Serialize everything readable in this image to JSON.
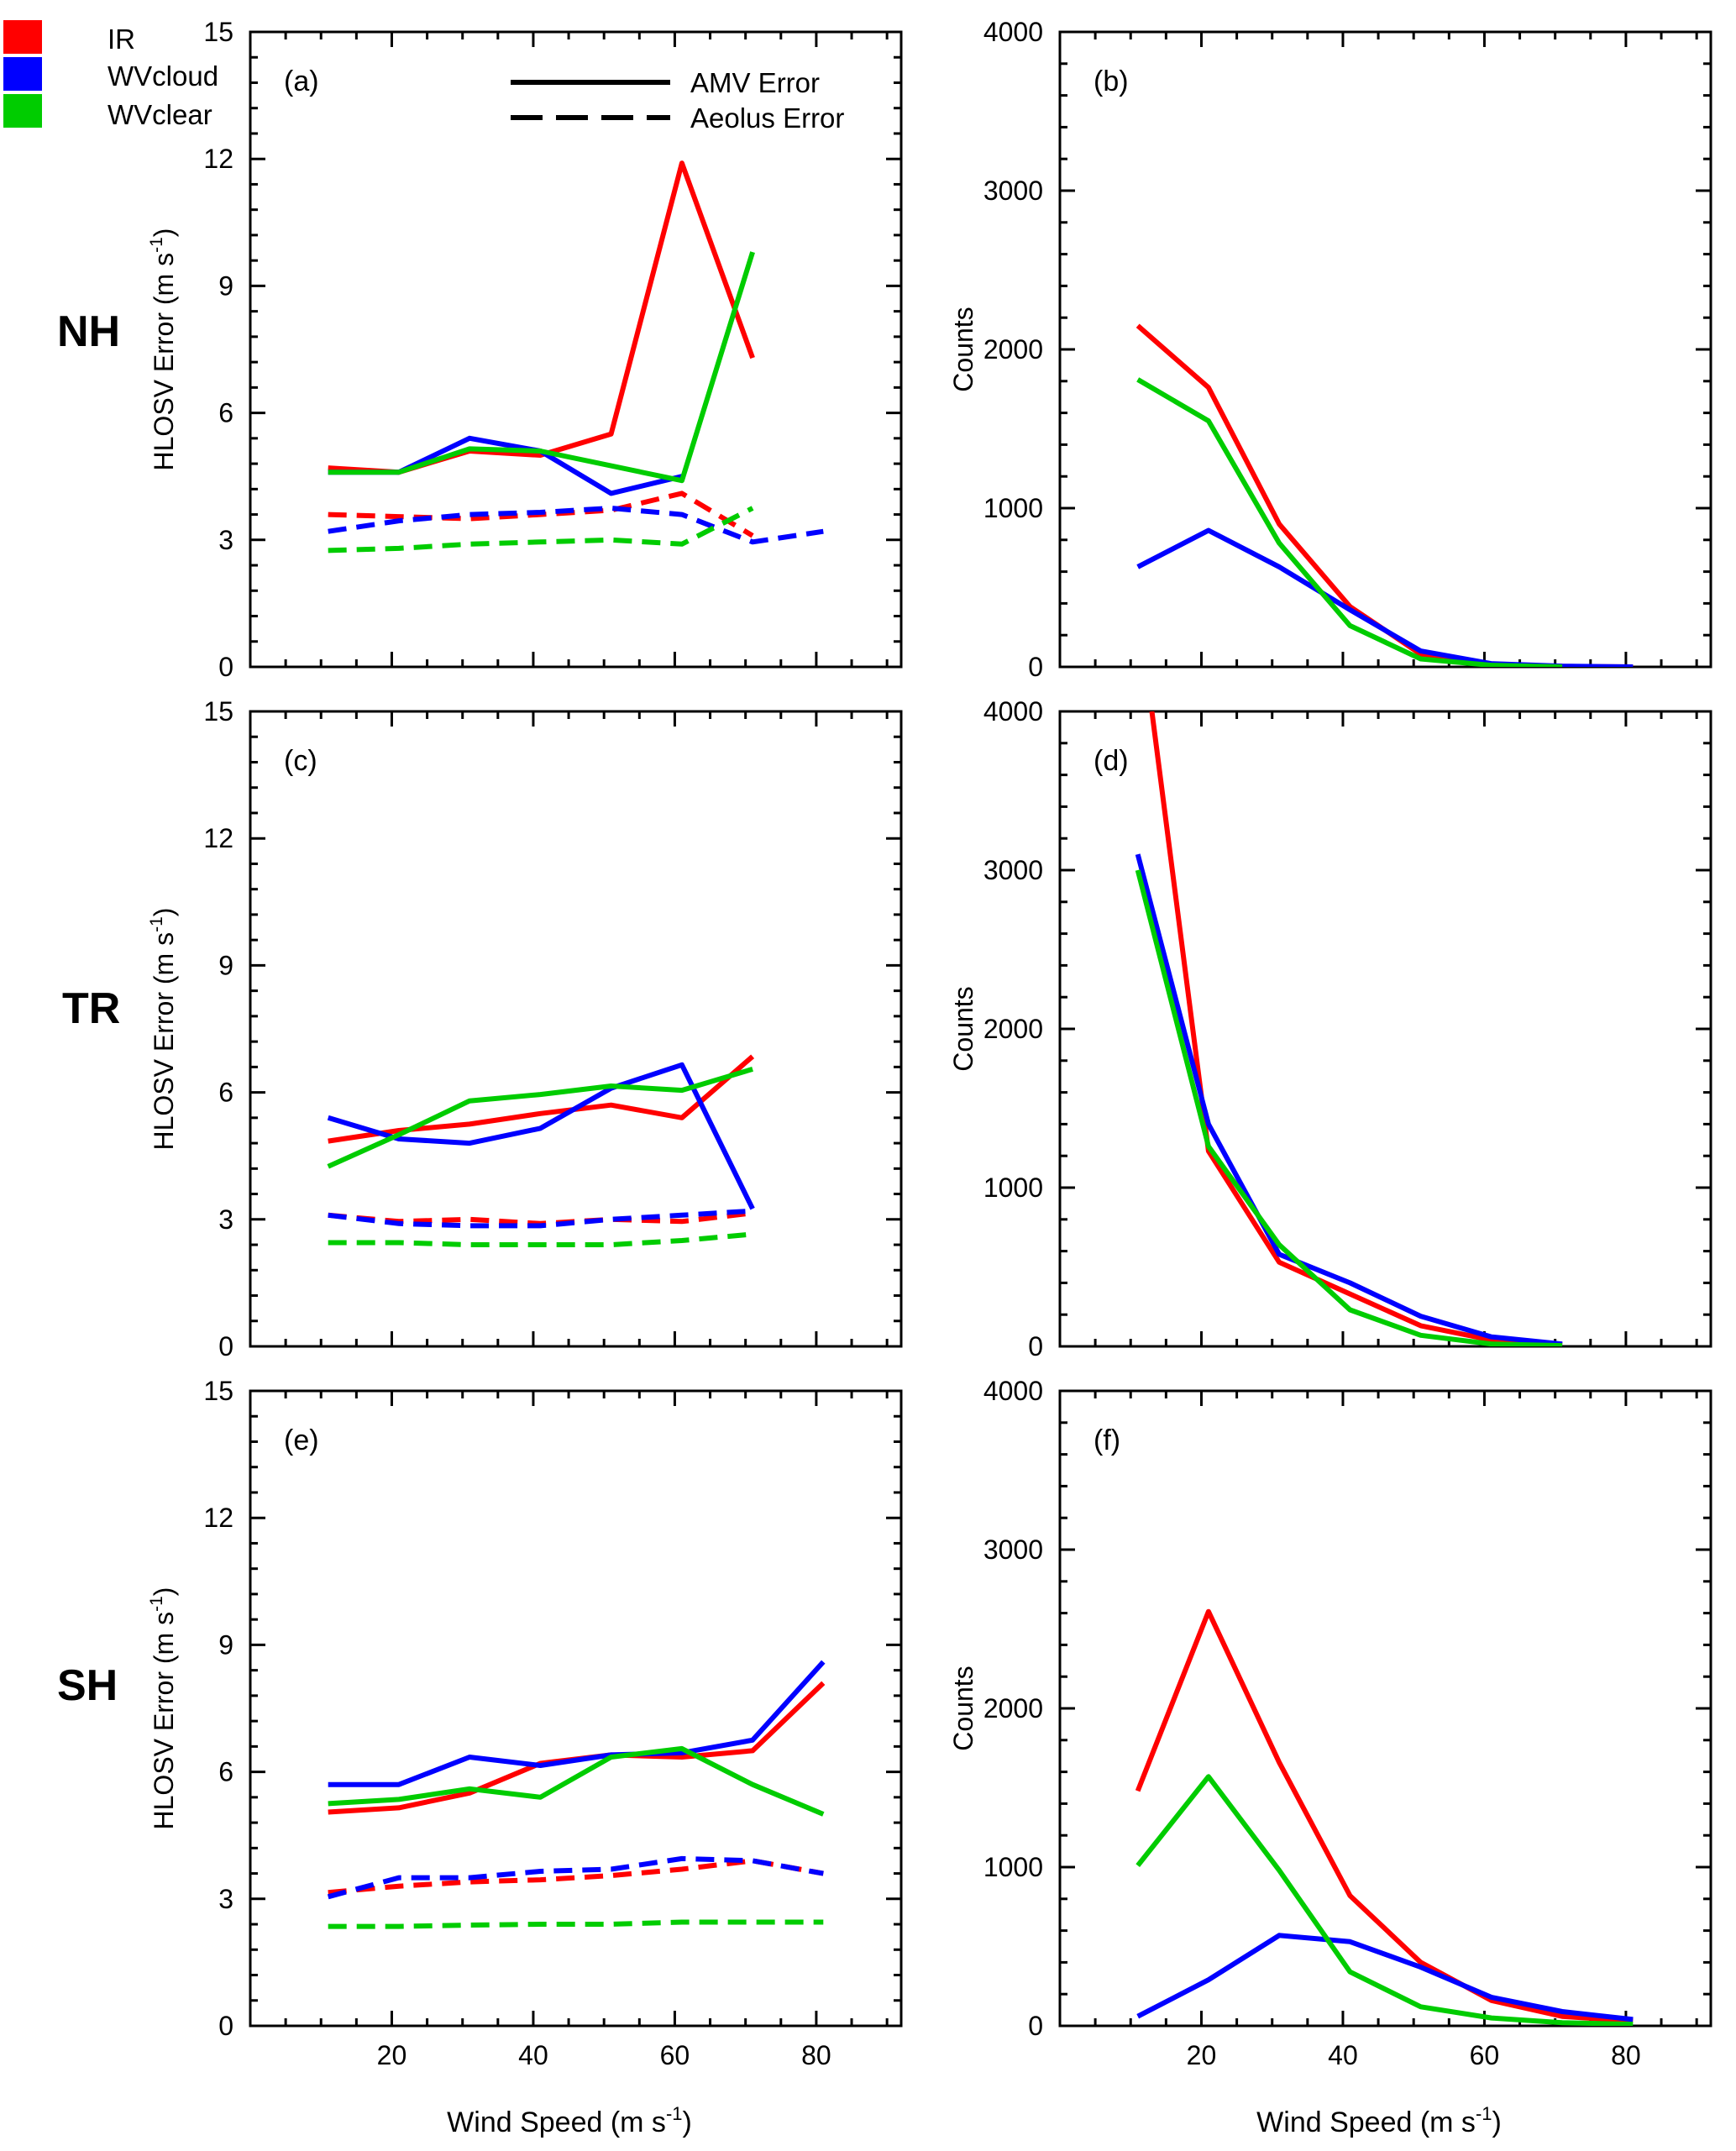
{
  "legend": {
    "series": [
      {
        "name": "IR",
        "color": "#ff0000"
      },
      {
        "name": "WVcloud",
        "color": "#0000ff"
      },
      {
        "name": "WVclear",
        "color": "#00cc00"
      }
    ],
    "line_styles": [
      {
        "label": "AMV Error",
        "style": "solid"
      },
      {
        "label": "Aeolus Error",
        "style": "dashed"
      }
    ]
  },
  "row_labels": [
    "NH",
    "TR",
    "SH"
  ],
  "axis_text": {
    "xlabel": "Wind Speed (m s",
    "xlabel_sup": "-1",
    "xlabel_end": ")",
    "ylabel_error": "HLOSV Error (m s",
    "ylabel_error_sup": "-1",
    "ylabel_error_end": ")",
    "ylabel_counts": "Counts"
  },
  "chart_data": [
    {
      "type": "line",
      "panel": "(a)",
      "region": "NH",
      "ylabel": "HLOSV Error (m s-1)",
      "xlim": [
        0,
        92
      ],
      "ylim": [
        0,
        15
      ],
      "xticks": [
        20,
        40,
        60,
        80
      ],
      "yticks": [
        0,
        3,
        6,
        9,
        12,
        15
      ],
      "series": [
        {
          "name": "IR",
          "kind": "AMV Error",
          "style": "solid",
          "color": "#ff0000",
          "x": [
            11,
            21,
            31,
            41,
            51,
            61,
            71
          ],
          "y": [
            4.7,
            4.6,
            5.1,
            5.0,
            5.5,
            11.9,
            7.3
          ]
        },
        {
          "name": "WVcloud",
          "kind": "AMV Error",
          "style": "solid",
          "color": "#0000ff",
          "x": [
            11,
            21,
            31,
            41,
            51,
            61
          ],
          "y": [
            4.6,
            4.6,
            5.4,
            5.1,
            4.1,
            4.5
          ]
        },
        {
          "name": "WVclear",
          "kind": "AMV Error",
          "style": "solid",
          "color": "#00cc00",
          "x": [
            11,
            21,
            31,
            41,
            51,
            61,
            71
          ],
          "y": [
            4.6,
            4.6,
            5.15,
            5.1,
            4.75,
            4.4,
            9.8
          ]
        },
        {
          "name": "IR",
          "kind": "Aeolus Error",
          "style": "dashed",
          "color": "#ff0000",
          "x": [
            11,
            21,
            31,
            41,
            51,
            61,
            71
          ],
          "y": [
            3.6,
            3.55,
            3.5,
            3.6,
            3.7,
            4.1,
            3.1
          ]
        },
        {
          "name": "WVcloud",
          "kind": "Aeolus Error",
          "style": "dashed",
          "color": "#0000ff",
          "x": [
            11,
            21,
            31,
            41,
            51,
            61,
            71,
            81
          ],
          "y": [
            3.2,
            3.45,
            3.6,
            3.65,
            3.75,
            3.6,
            2.95,
            3.2
          ]
        },
        {
          "name": "WVclear",
          "kind": "Aeolus Error",
          "style": "dashed",
          "color": "#00cc00",
          "x": [
            11,
            21,
            31,
            41,
            51,
            61,
            71
          ],
          "y": [
            2.75,
            2.8,
            2.9,
            2.95,
            3.0,
            2.9,
            3.75
          ]
        }
      ]
    },
    {
      "type": "line",
      "panel": "(b)",
      "region": "NH",
      "ylabel": "Counts",
      "xlim": [
        0,
        92
      ],
      "ylim": [
        0,
        4000
      ],
      "xticks": [
        20,
        40,
        60,
        80
      ],
      "yticks": [
        0,
        1000,
        2000,
        3000,
        4000
      ],
      "series": [
        {
          "name": "IR",
          "style": "solid",
          "color": "#ff0000",
          "x": [
            11,
            21,
            31,
            41,
            51,
            61,
            71,
            81
          ],
          "y": [
            2150,
            1760,
            900,
            380,
            80,
            15,
            3,
            0
          ]
        },
        {
          "name": "WVcloud",
          "style": "solid",
          "color": "#0000ff",
          "x": [
            11,
            21,
            31,
            41,
            51,
            61,
            71,
            81
          ],
          "y": [
            630,
            860,
            630,
            360,
            100,
            20,
            5,
            0
          ]
        },
        {
          "name": "WVclear",
          "style": "solid",
          "color": "#00cc00",
          "x": [
            11,
            21,
            31,
            41,
            51,
            61,
            71
          ],
          "y": [
            1810,
            1550,
            780,
            260,
            50,
            10,
            0
          ]
        }
      ]
    },
    {
      "type": "line",
      "panel": "(c)",
      "region": "TR",
      "ylabel": "HLOSV Error (m s-1)",
      "xlim": [
        0,
        92
      ],
      "ylim": [
        0,
        15
      ],
      "xticks": [
        20,
        40,
        60,
        80
      ],
      "yticks": [
        0,
        3,
        6,
        9,
        12,
        15
      ],
      "series": [
        {
          "name": "IR",
          "kind": "AMV Error",
          "style": "solid",
          "color": "#ff0000",
          "x": [
            11,
            21,
            31,
            41,
            51,
            61,
            71
          ],
          "y": [
            4.85,
            5.1,
            5.25,
            5.5,
            5.7,
            5.4,
            6.85
          ]
        },
        {
          "name": "WVcloud",
          "kind": "AMV Error",
          "style": "solid",
          "color": "#0000ff",
          "x": [
            11,
            21,
            31,
            41,
            51,
            61,
            71
          ],
          "y": [
            5.4,
            4.9,
            4.8,
            5.15,
            6.1,
            6.65,
            3.25
          ]
        },
        {
          "name": "WVclear",
          "kind": "AMV Error",
          "style": "solid",
          "color": "#00cc00",
          "x": [
            11,
            21,
            31,
            41,
            51,
            61,
            71
          ],
          "y": [
            4.25,
            5.0,
            5.8,
            5.95,
            6.15,
            6.05,
            6.55
          ]
        },
        {
          "name": "IR",
          "kind": "Aeolus Error",
          "style": "dashed",
          "color": "#ff0000",
          "x": [
            11,
            21,
            31,
            41,
            51,
            61,
            71
          ],
          "y": [
            3.1,
            2.95,
            3.0,
            2.9,
            3.0,
            2.95,
            3.15
          ]
        },
        {
          "name": "WVcloud",
          "kind": "Aeolus Error",
          "style": "dashed",
          "color": "#0000ff",
          "x": [
            11,
            21,
            31,
            41,
            51,
            61,
            71
          ],
          "y": [
            3.1,
            2.9,
            2.85,
            2.85,
            3.0,
            3.1,
            3.2
          ]
        },
        {
          "name": "WVclear",
          "kind": "Aeolus Error",
          "style": "dashed",
          "color": "#00cc00",
          "x": [
            11,
            21,
            31,
            41,
            51,
            61,
            71
          ],
          "y": [
            2.45,
            2.45,
            2.4,
            2.4,
            2.4,
            2.5,
            2.65
          ]
        }
      ]
    },
    {
      "type": "line",
      "panel": "(d)",
      "region": "TR",
      "ylabel": "Counts",
      "xlim": [
        0,
        92
      ],
      "ylim": [
        0,
        4000
      ],
      "xticks": [
        20,
        40,
        60,
        80
      ],
      "yticks": [
        0,
        1000,
        2000,
        3000,
        4000
      ],
      "series": [
        {
          "name": "IR",
          "style": "solid",
          "color": "#ff0000",
          "x": [
            13,
            21,
            31,
            41,
            51,
            61,
            71
          ],
          "y": [
            4000,
            1230,
            530,
            330,
            130,
            40,
            10
          ]
        },
        {
          "name": "WVcloud",
          "style": "solid",
          "color": "#0000ff",
          "x": [
            11,
            21,
            31,
            41,
            51,
            61,
            71
          ],
          "y": [
            3100,
            1400,
            580,
            400,
            190,
            60,
            15
          ]
        },
        {
          "name": "WVclear",
          "style": "solid",
          "color": "#00cc00",
          "x": [
            11,
            21,
            31,
            41,
            51,
            61,
            71
          ],
          "y": [
            3000,
            1260,
            640,
            230,
            70,
            15,
            5
          ]
        }
      ]
    },
    {
      "type": "line",
      "panel": "(e)",
      "region": "SH",
      "ylabel": "HLOSV Error (m s-1)",
      "xlim": [
        0,
        92
      ],
      "ylim": [
        0,
        15
      ],
      "xticks": [
        20,
        40,
        60,
        80
      ],
      "yticks": [
        0,
        3,
        6,
        9,
        12,
        15
      ],
      "series": [
        {
          "name": "IR",
          "kind": "AMV Error",
          "style": "solid",
          "color": "#ff0000",
          "x": [
            11,
            21,
            31,
            41,
            51,
            61,
            71,
            81
          ],
          "y": [
            5.05,
            5.15,
            5.5,
            6.2,
            6.4,
            6.35,
            6.5,
            8.1
          ]
        },
        {
          "name": "WVcloud",
          "kind": "AMV Error",
          "style": "solid",
          "color": "#0000ff",
          "x": [
            11,
            21,
            31,
            41,
            51,
            61,
            71,
            81
          ],
          "y": [
            5.7,
            5.7,
            6.35,
            6.15,
            6.4,
            6.45,
            6.75,
            8.6
          ]
        },
        {
          "name": "WVclear",
          "kind": "AMV Error",
          "style": "solid",
          "color": "#00cc00",
          "x": [
            11,
            21,
            31,
            41,
            51,
            61,
            71,
            81
          ],
          "y": [
            5.25,
            5.35,
            5.6,
            5.4,
            6.35,
            6.55,
            5.7,
            5.0
          ]
        },
        {
          "name": "IR",
          "kind": "Aeolus Error",
          "style": "dashed",
          "color": "#ff0000",
          "x": [
            11,
            21,
            31,
            41,
            51,
            61,
            71,
            81
          ],
          "y": [
            3.15,
            3.3,
            3.4,
            3.45,
            3.55,
            3.7,
            3.9,
            3.6
          ]
        },
        {
          "name": "WVcloud",
          "kind": "Aeolus Error",
          "style": "dashed",
          "color": "#0000ff",
          "x": [
            11,
            21,
            31,
            41,
            51,
            61,
            71,
            81
          ],
          "y": [
            3.05,
            3.5,
            3.5,
            3.65,
            3.7,
            3.95,
            3.9,
            3.6
          ]
        },
        {
          "name": "WVclear",
          "kind": "Aeolus Error",
          "style": "dashed",
          "color": "#00cc00",
          "x": [
            11,
            21,
            31,
            41,
            51,
            61,
            71,
            81
          ],
          "y": [
            2.35,
            2.35,
            2.38,
            2.4,
            2.4,
            2.45,
            2.45,
            2.45
          ]
        }
      ]
    },
    {
      "type": "line",
      "panel": "(f)",
      "region": "SH",
      "ylabel": "Counts",
      "xlim": [
        0,
        92
      ],
      "ylim": [
        0,
        4000
      ],
      "xticks": [
        20,
        40,
        60,
        80
      ],
      "yticks": [
        0,
        1000,
        2000,
        3000,
        4000
      ],
      "series": [
        {
          "name": "IR",
          "style": "solid",
          "color": "#ff0000",
          "x": [
            11,
            21,
            31,
            41,
            51,
            61,
            71,
            81
          ],
          "y": [
            1480,
            2610,
            1660,
            820,
            400,
            160,
            60,
            30
          ]
        },
        {
          "name": "WVcloud",
          "style": "solid",
          "color": "#0000ff",
          "x": [
            11,
            21,
            31,
            41,
            51,
            61,
            71,
            81
          ],
          "y": [
            60,
            290,
            570,
            530,
            370,
            180,
            90,
            40
          ]
        },
        {
          "name": "WVclear",
          "style": "solid",
          "color": "#00cc00",
          "x": [
            11,
            21,
            31,
            41,
            51,
            61,
            71,
            81
          ],
          "y": [
            1010,
            1570,
            980,
            340,
            120,
            50,
            20,
            10
          ]
        }
      ]
    }
  ]
}
